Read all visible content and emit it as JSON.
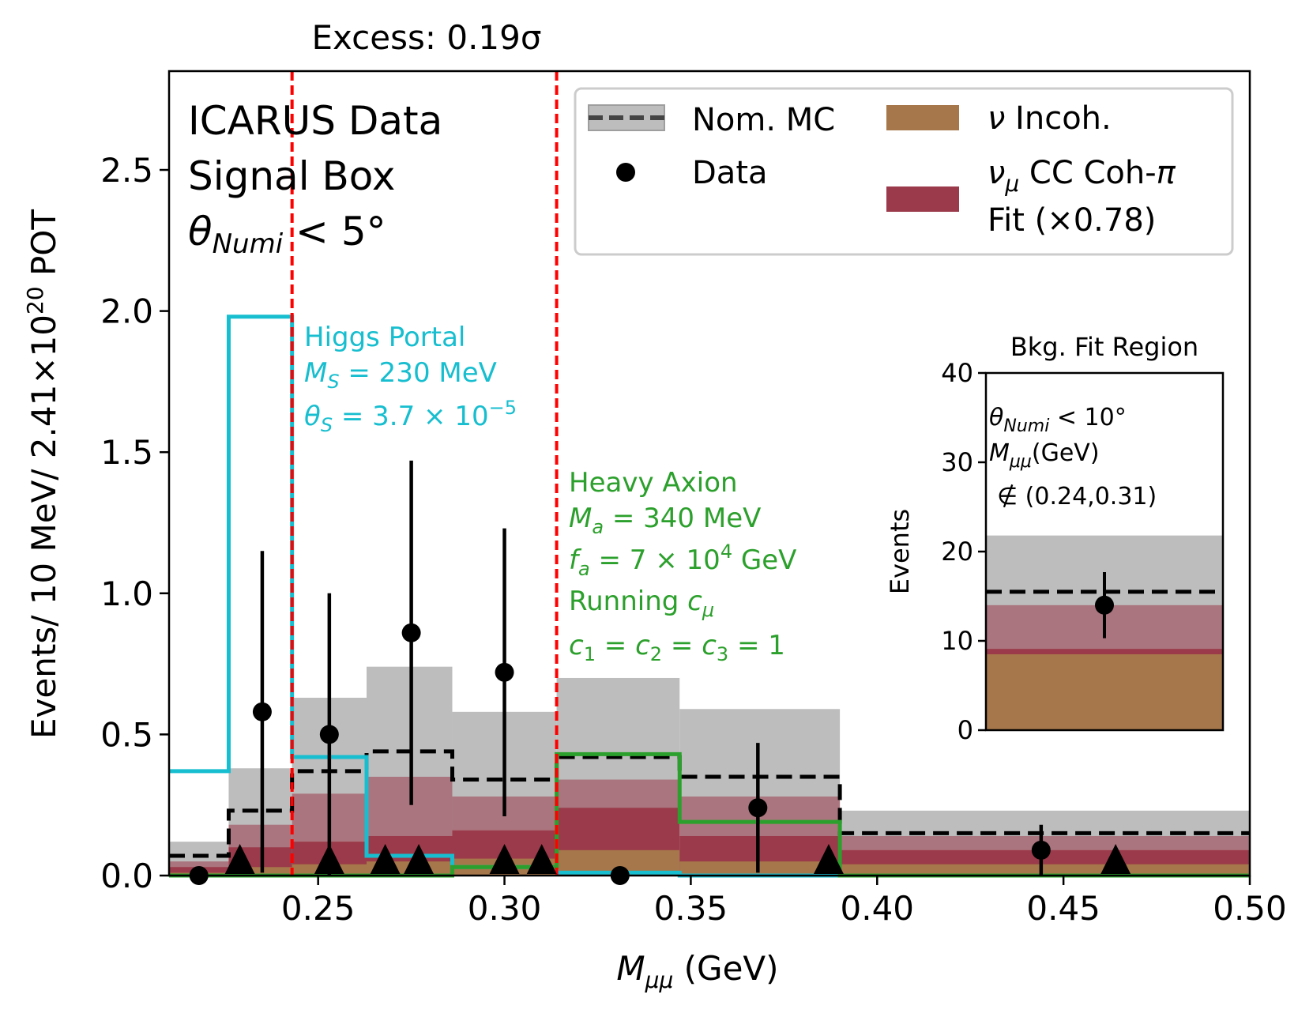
{
  "colors": {
    "mc_band": "#bdbdbd",
    "nom_mc_line": "#000000",
    "incoh": "#a6774a",
    "cohpi": "#9b3a4a",
    "higgs": "#17becf",
    "axion": "#2ca02c",
    "excess_lines": "#ff0000",
    "data": "#000000"
  },
  "chart_data": [
    {
      "type": "histogram",
      "title": "Excess: 0.19σ",
      "xlabel": "M_μμ (GeV)",
      "ylabel": "Events/ 10 MeV/ 2.41×10^20 POT",
      "xlim": [
        0.21,
        0.5
      ],
      "ylim": [
        0,
        2.85
      ],
      "xticks": [
        0.25,
        0.3,
        0.35,
        0.4,
        0.45,
        0.5
      ],
      "xtick_labels": [
        "0.25",
        "0.30",
        "0.35",
        "0.40",
        "0.45",
        "0.50"
      ],
      "yticks": [
        0.0,
        0.5,
        1.0,
        1.5,
        2.0,
        2.5
      ],
      "ytick_labels": [
        "0.0",
        "0.5",
        "1.0",
        "1.5",
        "2.0",
        "2.5"
      ],
      "signal_box_lines": [
        0.243,
        0.314
      ],
      "bins": {
        "edges": [
          0.21,
          0.226,
          0.243,
          0.263,
          0.286,
          0.314,
          0.347,
          0.39,
          0.5
        ],
        "incoh": [
          0.01,
          0.03,
          0.04,
          0.05,
          0.06,
          0.09,
          0.05,
          0.04
        ],
        "cohpi": [
          0.02,
          0.07,
          0.08,
          0.09,
          0.1,
          0.15,
          0.09,
          0.05
        ],
        "total_fit": [
          0.05,
          0.18,
          0.29,
          0.35,
          0.28,
          0.34,
          0.28,
          0.14
        ],
        "mc_band_low": [
          0.0,
          0.0,
          0.0,
          0.0,
          0.0,
          0.0,
          0.0,
          0.0
        ],
        "mc_band_high": [
          0.12,
          0.38,
          0.63,
          0.74,
          0.58,
          0.7,
          0.59,
          0.23
        ],
        "nom_mc": [
          0.07,
          0.23,
          0.37,
          0.44,
          0.34,
          0.42,
          0.35,
          0.15
        ]
      },
      "data_points": [
        {
          "x": 0.218,
          "y": 0.0,
          "err": 0.0
        },
        {
          "x": 0.235,
          "y": 0.58,
          "err": 0.57
        },
        {
          "x": 0.253,
          "y": 0.5,
          "err": 0.5
        },
        {
          "x": 0.275,
          "y": 0.86,
          "err": 0.61
        },
        {
          "x": 0.3,
          "y": 0.72,
          "err": 0.51
        },
        {
          "x": 0.331,
          "y": 0.0,
          "err": 0.0
        },
        {
          "x": 0.368,
          "y": 0.24,
          "err": 0.23
        },
        {
          "x": 0.444,
          "y": 0.09,
          "err": 0.09
        }
      ],
      "upper_limit_markers": [
        0.229,
        0.253,
        0.268,
        0.277,
        0.3,
        0.31,
        0.387,
        0.464
      ],
      "higgs_portal": {
        "edges": [
          0.21,
          0.226,
          0.243,
          0.263,
          0.286,
          0.314,
          0.347,
          0.39,
          0.5
        ],
        "values": [
          0.37,
          1.98,
          0.42,
          0.07,
          0.03,
          0.01,
          0.0,
          0.0
        ]
      },
      "heavy_axion": {
        "edges": [
          0.21,
          0.226,
          0.243,
          0.263,
          0.286,
          0.314,
          0.347,
          0.39,
          0.5
        ],
        "values": [
          0.0,
          0.0,
          0.0,
          0.0,
          0.03,
          0.43,
          0.19,
          0.0
        ]
      },
      "annotations": {
        "experiment": [
          "ICARUS Data",
          "Signal Box"
        ],
        "cut_base": "θ",
        "cut_sub": "Numi",
        "cut_rest": " < 5°",
        "higgs_title": "Higgs Portal",
        "higgs_mass": "M_S = 230 MeV",
        "higgs_theta": "θ_S = 3.7 × 10^−5",
        "axion_title": "Heavy Axion",
        "axion_mass": "M_a = 340 MeV",
        "axion_fa": "f_a = 7 × 10^4 GeV",
        "axion_running": "Running c_μ",
        "axion_couplings": "c₁ = c₂ = c₃ = 1"
      },
      "legend": {
        "placement": "top-right",
        "nom_mc": "Nom. MC",
        "data": "Data",
        "incoh": "ν Incoh.",
        "cohpi_1": "ν_μ CC Coh-π",
        "cohpi_2": "Fit (×0.78)"
      }
    },
    {
      "type": "bar",
      "title": "Bkg. Fit Region",
      "ylabel": "Events",
      "ylim": [
        0,
        40
      ],
      "yticks": [
        0,
        10,
        20,
        30,
        40
      ],
      "ytick_labels": [
        "0",
        "10",
        "20",
        "30",
        "40"
      ],
      "incoh": 8.5,
      "cohpi": 0.6,
      "fit_total": 14.0,
      "mc_band_high": 21.8,
      "nom_mc": 15.5,
      "data": {
        "y": 14.0,
        "err": 3.7
      },
      "annotations": [
        "θ_Numi < 10°",
        "M_μμ(GeV)",
        "∉ (0.24,0.31)"
      ]
    }
  ]
}
